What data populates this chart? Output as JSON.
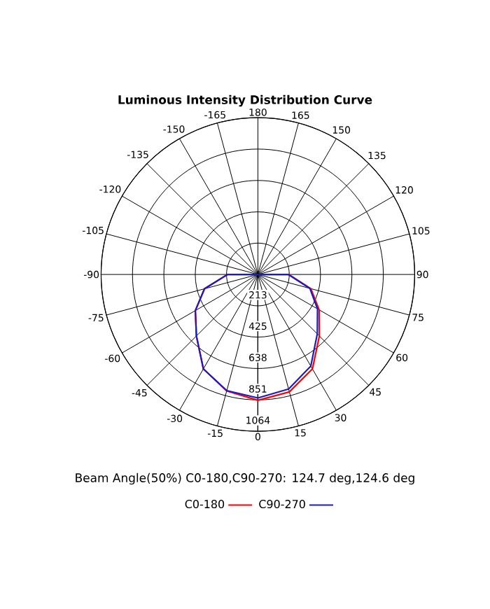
{
  "chart_data": {
    "type": "radar",
    "title": "Luminous Intensity Distribution Curve",
    "categories": [
      "180",
      "165",
      "150",
      "135",
      "120",
      "105",
      "90",
      "75",
      "60",
      "45",
      "30",
      "15",
      "0",
      "-15",
      "-30",
      "-45",
      "-60",
      "-75",
      "-90",
      "-105",
      "-120",
      "-135",
      "-150",
      "-165"
    ],
    "series": [
      {
        "name": "C0-180",
        "color": "#ff0000",
        "values": [
          0,
          0,
          0,
          0,
          0,
          0,
          210,
          372,
          480,
          590,
          740,
          825,
          854,
          818,
          740,
          590,
          490,
          375,
          206,
          0,
          0,
          0,
          0,
          0
        ]
      },
      {
        "name": "C90-270",
        "color": "#1a1ac8",
        "values": [
          0,
          0,
          0,
          0,
          0,
          0,
          206,
          365,
          467,
          570,
          718,
          805,
          838,
          816,
          740,
          590,
          490,
          375,
          206,
          0,
          0,
          0,
          0,
          0
        ]
      }
    ],
    "ylim": [
      0,
      1064
    ],
    "yticks": [
      213,
      425,
      638,
      851,
      1064
    ],
    "grid": true,
    "legend": "bottom",
    "annotations": [
      "Beam Angle(50%) C0-180,C90-270: 124.7 deg,124.6 deg"
    ]
  }
}
